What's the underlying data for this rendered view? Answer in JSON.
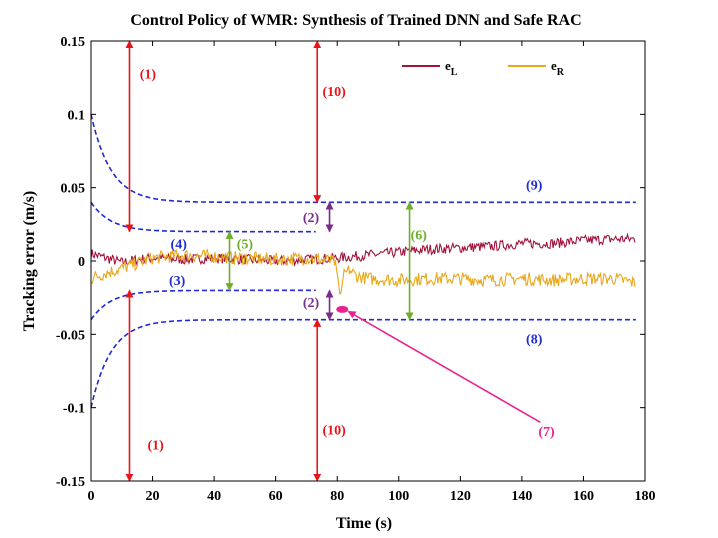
{
  "chart_data": {
    "type": "line",
    "title": "Control Policy of WMR: Synthesis of Trained DNN and Safe RAC",
    "xlabel": "Time (s)",
    "ylabel": "Tracking error (m/s)",
    "xlim": [
      0,
      180
    ],
    "ylim": [
      -0.15,
      0.15
    ],
    "xticks": [
      0,
      20,
      40,
      60,
      80,
      100,
      120,
      140,
      160,
      180
    ],
    "yticks": [
      -0.15,
      -0.1,
      -0.05,
      0,
      0.05,
      0.1,
      0.15
    ],
    "ytick_labels": [
      "-0.15",
      "-0.1",
      "-0.05",
      "0",
      "0.05",
      "0.1",
      "0.15"
    ],
    "grid": false,
    "legend": {
      "placement": "top-right",
      "entries": [
        {
          "name": "e",
          "sub": "L",
          "color": "#a3123b"
        },
        {
          "name": "e",
          "sub": "R",
          "color": "#e8a81a"
        }
      ]
    },
    "series": [
      {
        "name": "e_L",
        "color": "#a3123b",
        "x": [
          0,
          5,
          10,
          15,
          20,
          30,
          40,
          50,
          60,
          70,
          80,
          90,
          100,
          110,
          120,
          130,
          140,
          150,
          160,
          170,
          177
        ],
        "y": [
          0.005,
          0.002,
          -0.001,
          0.001,
          0.002,
          0.001,
          0.002,
          0.001,
          0.0,
          0.001,
          0.002,
          0.004,
          0.006,
          0.008,
          0.009,
          0.01,
          0.012,
          0.012,
          0.014,
          0.015,
          0.015
        ]
      },
      {
        "name": "e_R",
        "color": "#e8a81a",
        "x": [
          0,
          5,
          10,
          20,
          30,
          40,
          50,
          60,
          70,
          79,
          80,
          81,
          82,
          84,
          86,
          90,
          100,
          110,
          120,
          130,
          140,
          150,
          160,
          170,
          177
        ],
        "y": [
          -0.012,
          -0.008,
          -0.005,
          0.002,
          0.004,
          0.003,
          0.002,
          0.001,
          0.002,
          0.0,
          -0.008,
          -0.025,
          -0.01,
          -0.006,
          -0.01,
          -0.012,
          -0.013,
          -0.012,
          -0.012,
          -0.013,
          -0.012,
          -0.013,
          -0.012,
          -0.012,
          -0.015
        ]
      }
    ],
    "bounds": [
      {
        "name": "inner-upper",
        "color": "#1f2bd6",
        "start": 0.04,
        "end": 0.02,
        "x_end": 73
      },
      {
        "name": "inner-lower",
        "color": "#1f2bd6",
        "start": -0.04,
        "end": -0.02,
        "x_end": 73
      },
      {
        "name": "outer-upper",
        "color": "#1f2bd6",
        "start": 0.1,
        "end": 0.04,
        "x_end": 177
      },
      {
        "name": "outer-lower",
        "color": "#1f2bd6",
        "start": -0.1,
        "end": -0.04,
        "x_end": 177
      }
    ],
    "annotations": [
      {
        "name": "ann-1-top",
        "text": "(1)",
        "x": 18.5,
        "y": 0.128,
        "color": "#e8141a"
      },
      {
        "name": "ann-10-top",
        "text": "(10)",
        "x": 79,
        "y": 0.116,
        "color": "#e8141a"
      },
      {
        "name": "ann-1-bottom",
        "text": "(1)",
        "x": 21,
        "y": -0.125,
        "color": "#e8141a"
      },
      {
        "name": "ann-10-bottom",
        "text": "(10)",
        "x": 79,
        "y": -0.115,
        "color": "#e8141a"
      },
      {
        "name": "ann-2-top",
        "text": "(2)",
        "x": 71.5,
        "y": 0.03,
        "color": "#7a2c8c"
      },
      {
        "name": "ann-2-bottom",
        "text": "(2)",
        "x": 71.5,
        "y": -0.028,
        "color": "#7a2c8c"
      },
      {
        "name": "ann-3",
        "text": "(3)",
        "x": 28,
        "y": -0.013,
        "color": "#1f2bd6"
      },
      {
        "name": "ann-4",
        "text": "(4)",
        "x": 28.5,
        "y": 0.012,
        "color": "#1f2bd6"
      },
      {
        "name": "ann-5",
        "text": "(5)",
        "x": 50,
        "y": 0.012,
        "color": "#6fad2a"
      },
      {
        "name": "ann-6",
        "text": "(6)",
        "x": 106.5,
        "y": 0.018,
        "color": "#6fad2a"
      },
      {
        "name": "ann-7",
        "text": "(7)",
        "x": 148,
        "y": -0.116,
        "color": "#e8258f"
      },
      {
        "name": "ann-8",
        "text": "(8)",
        "x": 144,
        "y": -0.053,
        "color": "#1f2bd6"
      },
      {
        "name": "ann-9",
        "text": "(9)",
        "x": 144,
        "y": 0.052,
        "color": "#1f2bd6"
      }
    ],
    "arrows": [
      {
        "name": "arrow-1-top",
        "x": 12.5,
        "y1": 0.15,
        "y2": 0.02,
        "color": "#e8141a"
      },
      {
        "name": "arrow-1-bottom",
        "x": 12.5,
        "y1": -0.02,
        "y2": -0.15,
        "color": "#e8141a"
      },
      {
        "name": "arrow-10-top",
        "x": 73.5,
        "y1": 0.15,
        "y2": 0.04,
        "color": "#e8141a"
      },
      {
        "name": "arrow-10-bottom",
        "x": 73.5,
        "y1": -0.04,
        "y2": -0.15,
        "color": "#e8141a"
      },
      {
        "name": "arrow-2-top",
        "x": 77.5,
        "y1": 0.02,
        "y2": 0.04,
        "color": "#7a2c8c"
      },
      {
        "name": "arrow-2-bottom",
        "x": 77.5,
        "y1": -0.02,
        "y2": -0.04,
        "color": "#7a2c8c"
      },
      {
        "name": "arrow-5",
        "x": 45,
        "y1": 0.02,
        "y2": -0.02,
        "color": "#6fad2a"
      },
      {
        "name": "arrow-6",
        "x": 103.5,
        "y1": 0.04,
        "y2": -0.04,
        "color": "#6fad2a"
      }
    ],
    "pointer": {
      "name": "arrow-7",
      "from": [
        146,
        -0.11
      ],
      "to": [
        81,
        -0.033
      ],
      "color": "#e8258f"
    }
  }
}
